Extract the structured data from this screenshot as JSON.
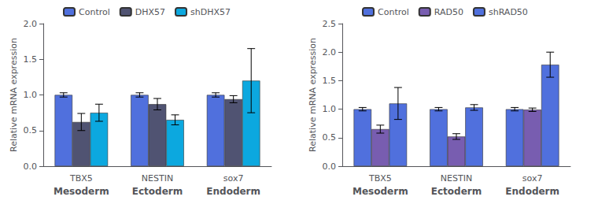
{
  "chart_data": [
    {
      "type": "bar",
      "ylabel": "Relative mRNA expression",
      "categories": [
        "TBX5",
        "NESTIN",
        "sox7"
      ],
      "group_labels": [
        "Mesoderm",
        "Ectoderm",
        "Endoderm"
      ],
      "series": [
        {
          "name": "Control",
          "values": [
            1.0,
            1.0,
            1.0
          ],
          "errors": [
            0.03,
            0.03,
            0.03
          ]
        },
        {
          "name": "DHX57",
          "values": [
            0.62,
            0.87,
            0.94
          ],
          "errors": [
            0.12,
            0.08,
            0.05
          ]
        },
        {
          "name": "shDHX57",
          "values": [
            0.75,
            0.65,
            1.2
          ],
          "errors": [
            0.12,
            0.07,
            0.45
          ]
        }
      ],
      "ylim": [
        0,
        2.0
      ],
      "yticks": [
        {
          "value": 0,
          "label": "0.0"
        },
        0.5,
        {
          "value": 1.0,
          "label": "1.0"
        },
        1.5,
        {
          "value": 2.0,
          "label": "2.0"
        }
      ],
      "grid": false,
      "legend": "top"
    },
    {
      "type": "bar",
      "ylabel": "Relative mRNA expression",
      "categories": [
        "TBX5",
        "NESTIN",
        "sox7"
      ],
      "group_labels": [
        "Mesoderm",
        "Ectoderm",
        "Endoderm"
      ],
      "series": [
        {
          "name": "Control",
          "values": [
            1.0,
            1.0,
            1.0
          ],
          "errors": [
            0.03,
            0.03,
            0.03
          ]
        },
        {
          "name": "RAD50",
          "values": [
            0.65,
            0.52,
            0.99
          ],
          "errors": [
            0.07,
            0.05,
            0.03
          ]
        },
        {
          "name": "shRAD50",
          "values": [
            1.1,
            1.03,
            1.78
          ],
          "errors": [
            0.28,
            0.05,
            0.22
          ]
        }
      ],
      "ylim": [
        0,
        2.5
      ],
      "yticks": [
        {
          "value": 0,
          "label": "0.0"
        },
        0.5,
        {
          "value": 1.0,
          "label": "1.0"
        },
        1.5,
        {
          "value": 2.0,
          "label": "2.0"
        },
        2.5
      ],
      "grid": false,
      "legend": "top"
    }
  ]
}
